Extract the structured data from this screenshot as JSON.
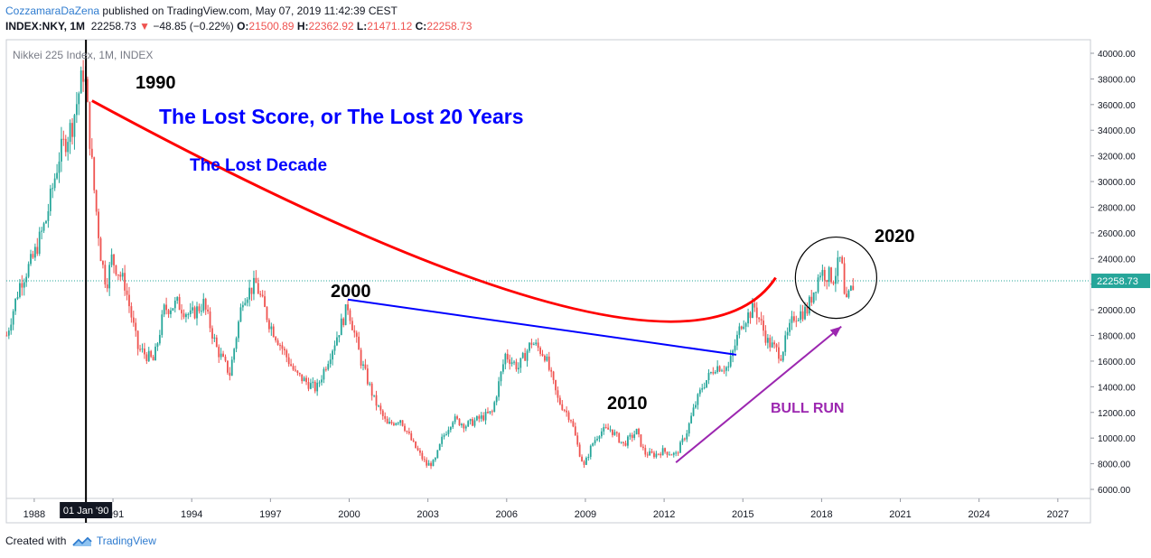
{
  "header": {
    "author": "CozzamaraDaZena",
    "published": "published on TradingView.com, May 07, 2019 11:42:39 CEST",
    "symbol": "INDEX:NKY, 1M",
    "last": "22258.73",
    "change": "−48.85 (−0.22%)",
    "o_label": "O:",
    "o_value": "21500.89",
    "h_label": "H:",
    "h_value": "22362.92",
    "l_label": "L:",
    "l_value": "21471.12",
    "c_label": "C:",
    "c_value": "22258.73"
  },
  "legend": {
    "title": "Nikkei 225 Index, 1M, INDEX"
  },
  "price_tag": "22258.73",
  "crosshair_label": "01 Jan '90",
  "annotations": {
    "y1990": "1990",
    "y2000": "2000",
    "y2010": "2010",
    "y2020": "2020",
    "lost_score": "The Lost Score, or The Lost 20 Years",
    "lost_decade": "The Lost Decade",
    "bull_run": "BULL RUN"
  },
  "footer": {
    "created_with": "Created with",
    "brand": "TradingView"
  },
  "colors": {
    "up": "#26a69a",
    "down": "#ef5350",
    "lost_score": "#0000ff",
    "lost_decade": "#0000ff",
    "bull_run": "#9c27b0",
    "curve": "#ff0000",
    "trendline": "#0000ff",
    "author_link": "#2e7bcf"
  },
  "chart_data": {
    "type": "candlestick",
    "title": "Nikkei 225 Index, 1M, INDEX",
    "y_ticks": [
      "6000.00",
      "8000.00",
      "10000.00",
      "12000.00",
      "14000.00",
      "16000.00",
      "18000.00",
      "20000.00",
      "22000.00",
      "24000.00",
      "26000.00",
      "28000.00",
      "30000.00",
      "32000.00",
      "34000.00",
      "36000.00",
      "38000.00",
      "40000.00"
    ],
    "x_ticks": [
      "1988",
      "1991",
      "1994",
      "1997",
      "2000",
      "2003",
      "2006",
      "2009",
      "2012",
      "2015",
      "2018",
      "2021",
      "2024",
      "2027"
    ],
    "ylim": [
      5000,
      41000
    ],
    "xlim": [
      1986.9,
      2027.5
    ],
    "last_close": 22258.73,
    "series": [
      {
        "name": "Nikkei 225 Index",
        "t": [
          1987.0,
          1987.5,
          1988.0,
          1988.5,
          1989.0,
          1989.5,
          1989.95,
          1990.3,
          1990.6,
          1990.8,
          1991.0,
          1991.5,
          1992.0,
          1992.6,
          1993.0,
          1993.5,
          1994.0,
          1994.5,
          1995.0,
          1995.5,
          1996.0,
          1996.5,
          1997.0,
          1997.5,
          1998.0,
          1998.8,
          1999.5,
          2000.0,
          2000.5,
          2001.0,
          2001.5,
          2002.0,
          2002.5,
          2003.0,
          2003.3,
          2003.6,
          2004.0,
          2004.5,
          2005.0,
          2005.5,
          2006.0,
          2006.5,
          2007.0,
          2007.5,
          2008.0,
          2008.5,
          2008.8,
          2009.0,
          2009.3,
          2009.6,
          2010.0,
          2010.5,
          2011.0,
          2011.3,
          2011.7,
          2012.0,
          2012.5,
          2012.9,
          2013.2,
          2013.5,
          2014.0,
          2014.5,
          2015.0,
          2015.5,
          2016.0,
          2016.5,
          2017.0,
          2017.5,
          2018.0,
          2018.5,
          2018.8,
          2018.95,
          2019.1,
          2019.33
        ],
        "close": [
          18000,
          22000,
          24000,
          27000,
          32000,
          34500,
          38900,
          30000,
          24000,
          22000,
          24000,
          22000,
          17000,
          16000,
          20000,
          20500,
          19500,
          20500,
          17000,
          15000,
          21000,
          22000,
          19000,
          17000,
          15000,
          13800,
          17500,
          20300,
          16000,
          13000,
          11000,
          11500,
          9500,
          7900,
          8100,
          10000,
          11500,
          11000,
          11500,
          12000,
          16500,
          15500,
          17500,
          16500,
          13000,
          11500,
          9000,
          7800,
          9500,
          10500,
          10700,
          9500,
          10500,
          8800,
          8700,
          9000,
          8700,
          10400,
          12400,
          14000,
          15600,
          15500,
          19000,
          20200,
          17500,
          16500,
          19500,
          20000,
          23000,
          22500,
          24100,
          20000,
          21200,
          22259
        ]
      }
    ],
    "overlays": {
      "curve": {
        "from": [
          1990.25,
          36300
        ],
        "through": [
          2008.0,
          20400
        ],
        "to": [
          2016.3,
          22500
        ]
      },
      "trendline": {
        "from": [
          2000.0,
          20800
        ],
        "to": [
          2014.8,
          16500
        ]
      },
      "bull_arrow": {
        "from": [
          2012.5,
          8100
        ],
        "to": [
          2018.8,
          18700
        ]
      },
      "circle": {
        "center": [
          2018.6,
          22500
        ],
        "radius_years": 1.55
      },
      "vertical_line": 1990.0
    }
  }
}
